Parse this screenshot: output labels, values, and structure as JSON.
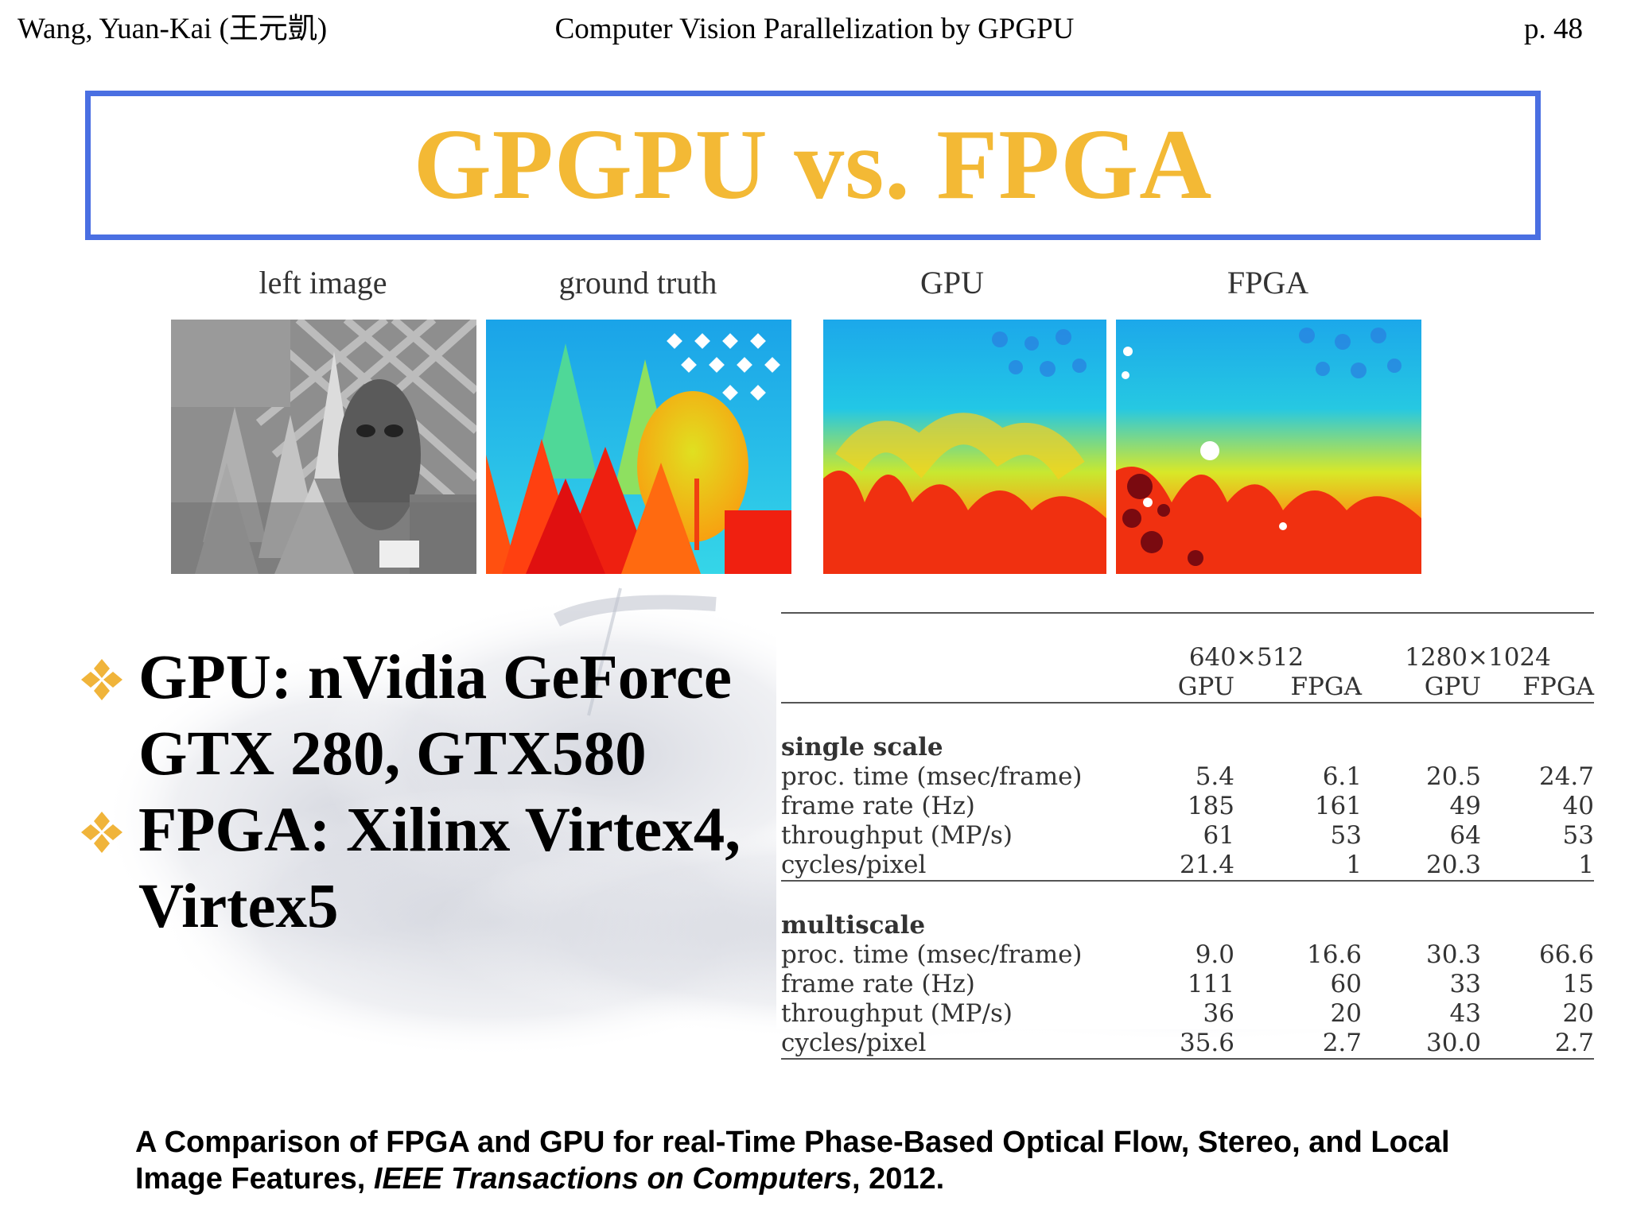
{
  "header": {
    "author": "Wang, Yuan-Kai (王元凱)",
    "course": "Computer Vision Parallelization by GPGPU",
    "page": "p. 48"
  },
  "title": "GPGPU vs. FPGA",
  "figure": {
    "captions": [
      "left image",
      "ground truth",
      "GPU",
      "FPGA"
    ]
  },
  "bullets": [
    {
      "line1": "GPU: nVidia GeForce",
      "line2": "GTX 280, GTX580"
    },
    {
      "line1": "FPGA: Xilinx Virtex4,",
      "line2": "Virtex5"
    }
  ],
  "table": {
    "res_a": "640×512",
    "res_b": "1280×1024",
    "col_gpu": "GPU",
    "col_fpga": "FPGA",
    "groups": [
      {
        "name": "single scale",
        "rows": [
          {
            "label": "proc. time (msec/frame)",
            "v": [
              "5.4",
              "6.1",
              "20.5",
              "24.7"
            ]
          },
          {
            "label": "frame rate (Hz)",
            "v": [
              "185",
              "161",
              "49",
              "40"
            ]
          },
          {
            "label": "throughput (MP/s)",
            "v": [
              "61",
              "53",
              "64",
              "53"
            ]
          },
          {
            "label": "cycles/pixel",
            "v": [
              "21.4",
              "1",
              "20.3",
              "1"
            ]
          }
        ]
      },
      {
        "name": "multiscale",
        "rows": [
          {
            "label": "proc. time (msec/frame)",
            "v": [
              "9.0",
              "16.6",
              "30.3",
              "66.6"
            ]
          },
          {
            "label": "frame rate (Hz)",
            "v": [
              "111",
              "60",
              "33",
              "15"
            ]
          },
          {
            "label": "throughput (MP/s)",
            "v": [
              "36",
              "20",
              "43",
              "20"
            ]
          },
          {
            "label": "cycles/pixel",
            "v": [
              "35.6",
              "2.7",
              "30.0",
              "2.7"
            ]
          }
        ]
      }
    ]
  },
  "reference": {
    "text1": "A Comparison of FPGA and GPU for real-Time Phase-Based Optical Flow, Stereo, and Local Image Features, ",
    "journal": "IEEE Transactions on Computers",
    "text2": ", 2012."
  }
}
